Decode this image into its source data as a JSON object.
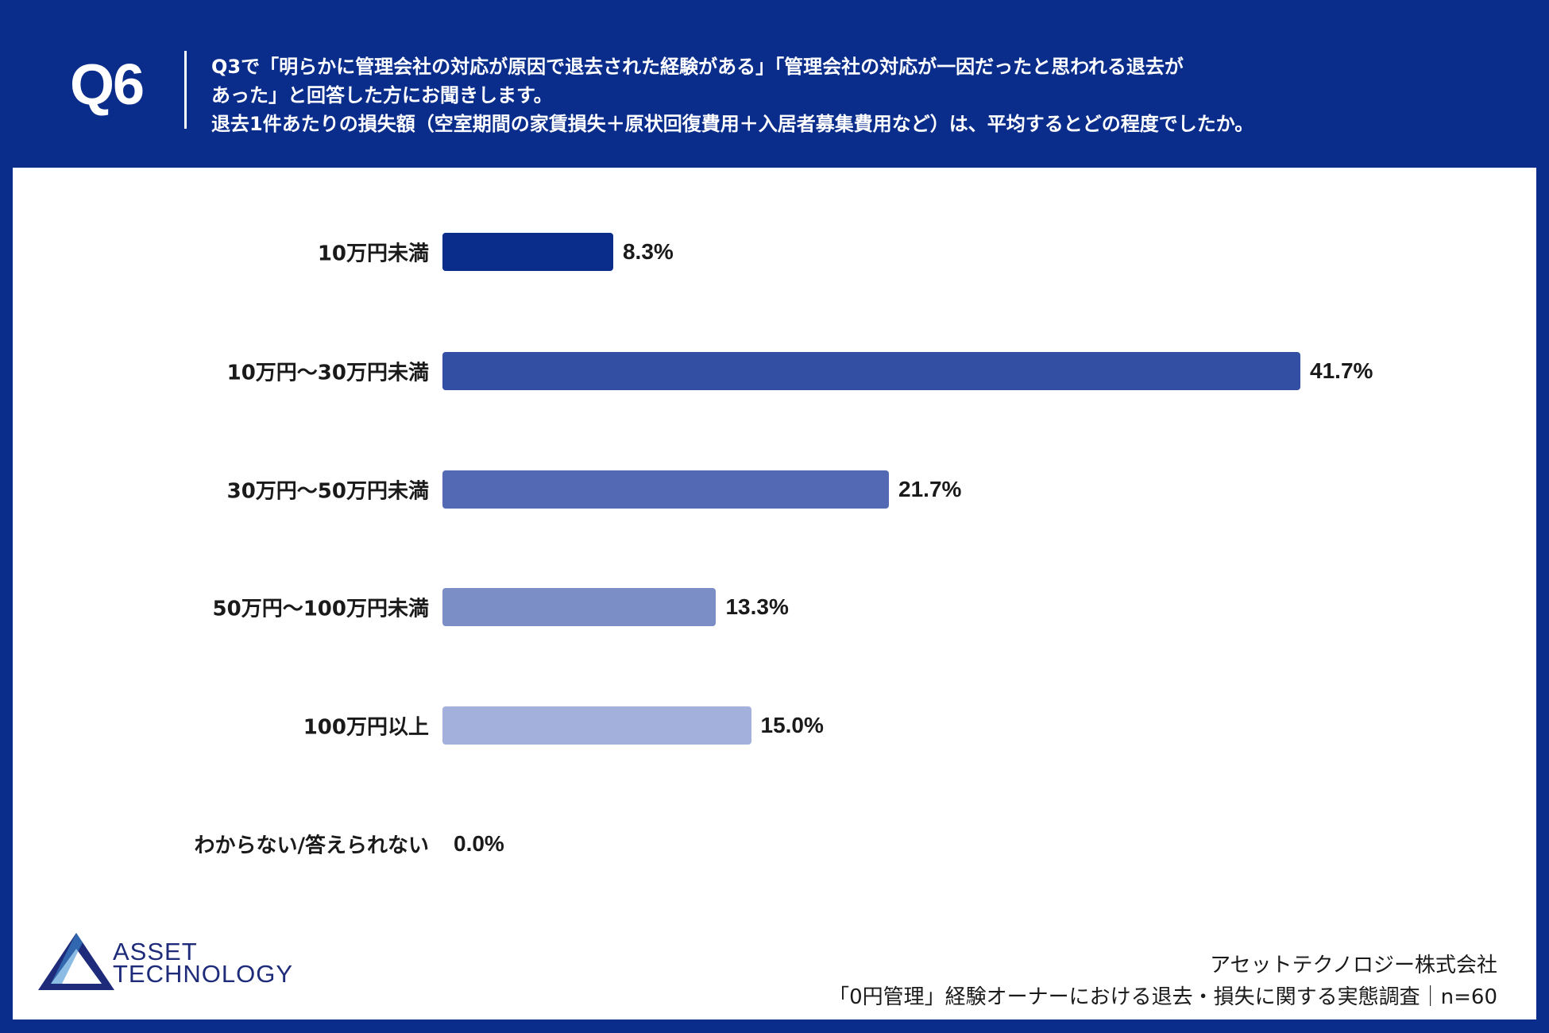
{
  "header": {
    "question_number": "Q6",
    "question_lines": [
      "Q3で「明らかに管理会社の対応が原因で退去された経験がある」「管理会社の対応が一因だったと思われる退去が",
      "あった」と回答した方にお聞きします。",
      "退去1件あたりの損失額（空室期間の家賃損失＋原状回復費用＋入居者募集費用など）は、平均するとどの程度でしたか。"
    ]
  },
  "chart_data": {
    "type": "bar",
    "orientation": "horizontal",
    "title": "",
    "categories": [
      "10万円未満",
      "10万円～30万円未満",
      "30万円～50万円未満",
      "50万円～100万円未満",
      "100万円以上",
      "わからない/答えられない"
    ],
    "values": [
      8.3,
      41.7,
      21.7,
      13.3,
      15.0,
      0.0
    ],
    "labels": [
      "8.3%",
      "41.7%",
      "21.7%",
      "13.3%",
      "15.0%",
      "0.0%"
    ],
    "colors": [
      "#0a2d8c",
      "#324fa3",
      "#5469b3",
      "#7c8ec6",
      "#a4b0dc",
      "#c5cde9"
    ],
    "unit": "%",
    "xlabel": "",
    "ylabel": "",
    "xlim": [
      0,
      50
    ],
    "grid": false
  },
  "footer": {
    "logo_text_line1": "ASSET",
    "logo_text_line2": "TECHNOLOGY",
    "company": "アセットテクノロジー株式会社",
    "survey": "「0円管理」経験オーナーにおける退去・損失に関する実態調査｜n=60"
  }
}
